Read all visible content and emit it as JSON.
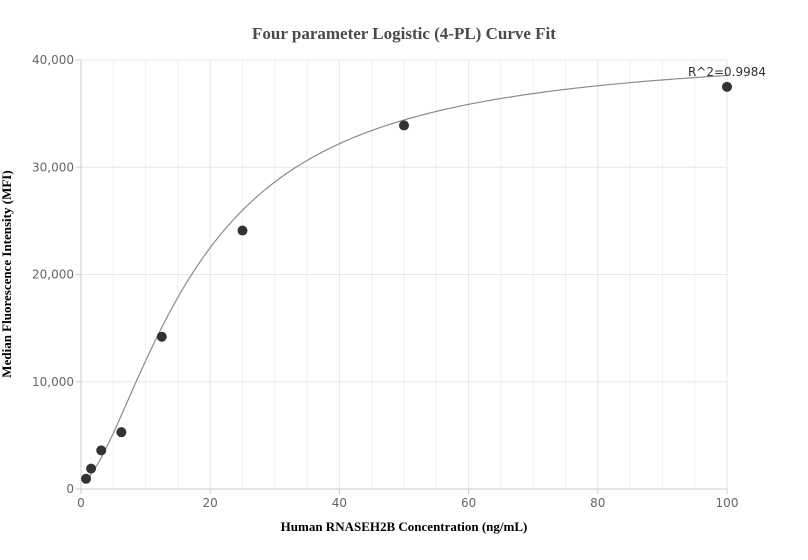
{
  "chart_data": {
    "type": "scatter",
    "title": "Four parameter Logistic (4-PL) Curve Fit",
    "xlabel": "Human RNASEH2B Concentration (ng/mL)",
    "ylabel": "Median Fluorescence Intensity (MFI)",
    "xlim": [
      0,
      100
    ],
    "ylim": [
      0,
      40000
    ],
    "x_ticks": [
      0,
      20,
      40,
      60,
      80,
      100
    ],
    "x_tick_labels": [
      "0",
      "20",
      "40",
      "60",
      "80",
      "100"
    ],
    "y_ticks": [
      0,
      10000,
      20000,
      30000,
      40000
    ],
    "y_tick_labels": [
      "0",
      "10,000",
      "20,000",
      "30,000",
      "40,000"
    ],
    "grid": true,
    "annotation": "R^2=0.9984",
    "colors": {
      "point": "#333333",
      "curve": "#8c8c8c",
      "grid": "#e6e6ef"
    },
    "points": [
      {
        "x": 0.78,
        "y": 950
      },
      {
        "x": 1.56,
        "y": 1900
      },
      {
        "x": 3.13,
        "y": 3600
      },
      {
        "x": 6.25,
        "y": 5300
      },
      {
        "x": 12.5,
        "y": 14200
      },
      {
        "x": 25,
        "y": 24100
      },
      {
        "x": 50,
        "y": 33900
      },
      {
        "x": 100,
        "y": 37500
      }
    ],
    "fit": {
      "model": "4PL",
      "A": 600,
      "B": 1.6,
      "C": 18,
      "D": 41000
    }
  }
}
